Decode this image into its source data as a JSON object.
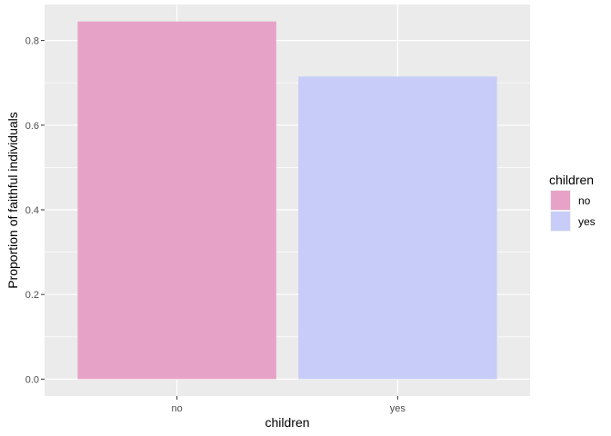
{
  "chart_data": {
    "type": "bar",
    "categories": [
      "no",
      "yes"
    ],
    "values": [
      0.845,
      0.715
    ],
    "colors": [
      "#e7a3c7",
      "#c7cdf8"
    ],
    "xlabel": "children",
    "ylabel": "Proportion of faithful individuals",
    "ylim": [
      -0.04,
      0.885
    ],
    "yticks": [
      0.0,
      0.2,
      0.4,
      0.6,
      0.8
    ],
    "ytick_labels": [
      "0.0",
      "0.2",
      "0.4",
      "0.6",
      "0.8"
    ],
    "grid": true,
    "panel_background": "#ebebeb",
    "legend": {
      "title": "children",
      "position": "right",
      "entries": [
        {
          "label": "no",
          "color": "#e7a3c7"
        },
        {
          "label": "yes",
          "color": "#c7cdf8"
        }
      ]
    }
  }
}
